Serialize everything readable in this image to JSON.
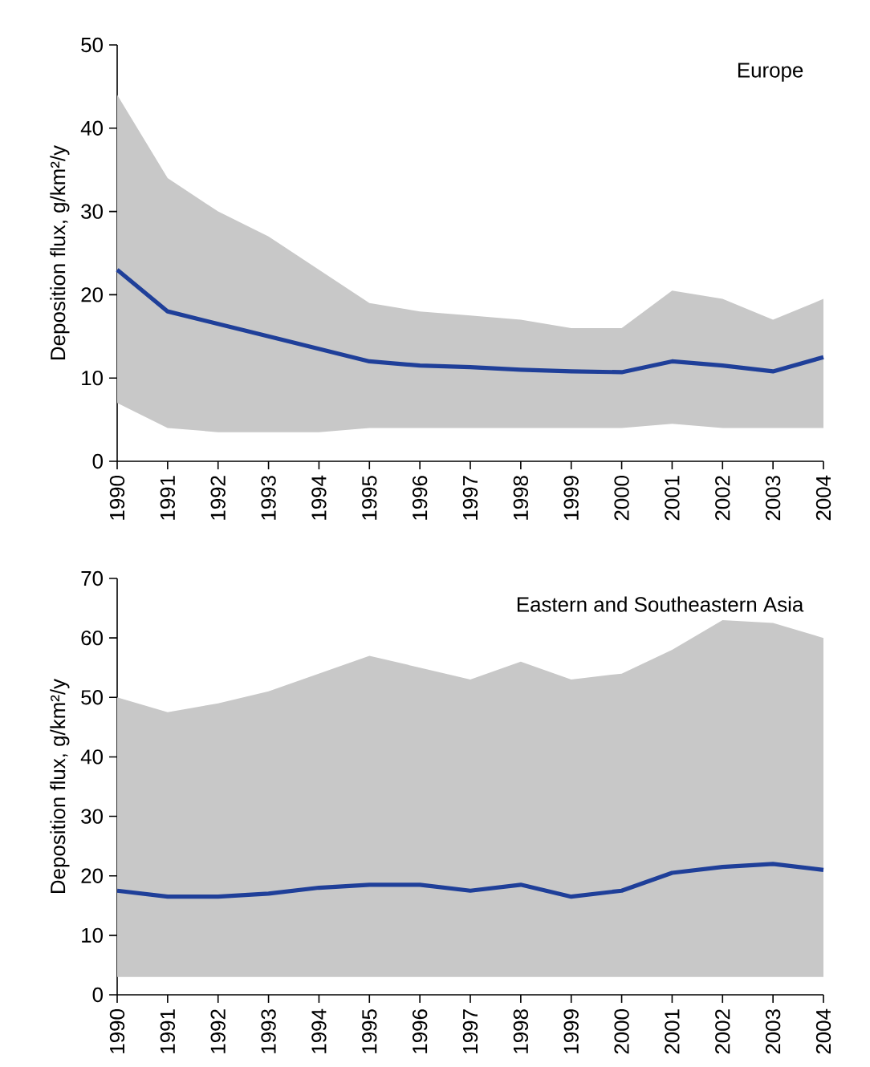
{
  "chart_data": [
    {
      "type": "line",
      "title": "Europe",
      "ylabel": "Deposition flux, g/km²/y",
      "x": [
        1990,
        1991,
        1992,
        1993,
        1994,
        1995,
        1996,
        1997,
        1998,
        1999,
        2000,
        2001,
        2002,
        2003,
        2004
      ],
      "xlim": [
        1990,
        2004
      ],
      "xticks": [
        1990,
        1991,
        1992,
        1993,
        1994,
        1995,
        1996,
        1997,
        1998,
        1999,
        2000,
        2001,
        2002,
        2003,
        2004
      ],
      "ylim": [
        0,
        50
      ],
      "yticks": [
        0,
        10,
        20,
        30,
        40,
        50
      ],
      "series": [
        {
          "color": "#1f3f99",
          "values": [
            23,
            18,
            16.5,
            15,
            13.5,
            12,
            11.5,
            11.3,
            11,
            10.8,
            10.7,
            12,
            11.5,
            10.8,
            12.5
          ],
          "lower": [
            7,
            4,
            3.5,
            3.5,
            3.5,
            4,
            4,
            4,
            4,
            4,
            4,
            4.5,
            4,
            4,
            4
          ],
          "upper": [
            44,
            34,
            30,
            27,
            23,
            19,
            18,
            17.5,
            17,
            16,
            16,
            20.5,
            19.5,
            17,
            19.5
          ]
        }
      ]
    },
    {
      "type": "line",
      "title": "Eastern and Southeastern Asia",
      "ylabel": "Deposition flux, g/km²/y",
      "x": [
        1990,
        1991,
        1992,
        1993,
        1994,
        1995,
        1996,
        1997,
        1998,
        1999,
        2000,
        2001,
        2002,
        2003,
        2004
      ],
      "xlim": [
        1990,
        2004
      ],
      "xticks": [
        1990,
        1991,
        1992,
        1993,
        1994,
        1995,
        1996,
        1997,
        1998,
        1999,
        2000,
        2001,
        2002,
        2003,
        2004
      ],
      "ylim": [
        0,
        70
      ],
      "yticks": [
        0,
        10,
        20,
        30,
        40,
        50,
        60,
        70
      ],
      "series": [
        {
          "color": "#1f3f99",
          "values": [
            17.5,
            16.5,
            16.5,
            17,
            18,
            18.5,
            18.5,
            17.5,
            18.5,
            16.5,
            17.5,
            20.5,
            21.5,
            22,
            21
          ],
          "lower": [
            3,
            3,
            3,
            3,
            3,
            3,
            3,
            3,
            3,
            3,
            3,
            3,
            3,
            3,
            3
          ],
          "upper": [
            50,
            47.5,
            49,
            51,
            54,
            57,
            55,
            53,
            56,
            53,
            54,
            58,
            63,
            62.5,
            60
          ]
        }
      ]
    }
  ]
}
